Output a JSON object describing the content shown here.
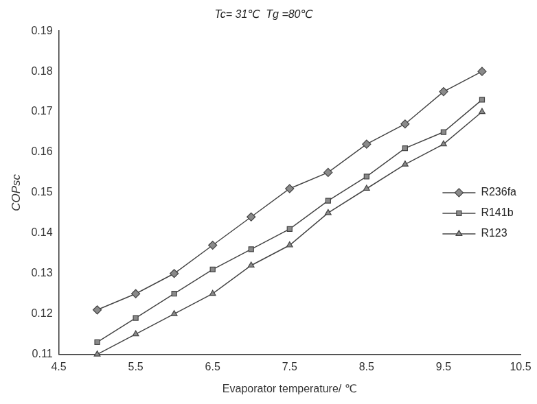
{
  "chart_data": {
    "type": "line",
    "title": "Tc= 31℃  Tg =80℃",
    "x_label": "Evaporator temperature/ ℃",
    "y_label": "COPsc",
    "x": [
      5,
      5.5,
      6,
      6.5,
      7,
      7.5,
      8,
      8.5,
      9,
      9.5,
      10
    ],
    "series": [
      {
        "name": "R236fa",
        "color": "#444444",
        "marker": "diamond",
        "line_style": "solid",
        "values": [
          0.121,
          0.125,
          0.13,
          0.137,
          0.144,
          0.151,
          0.155,
          0.162,
          0.167,
          0.175,
          0.18
        ]
      },
      {
        "name": "R141b",
        "color": "#444444",
        "marker": "square",
        "line_style": "solid",
        "values": [
          0.113,
          0.119,
          0.125,
          0.131,
          0.136,
          0.141,
          0.148,
          0.154,
          0.161,
          0.165,
          0.173
        ]
      },
      {
        "name": "R123",
        "color": "#444444",
        "marker": "triangle",
        "line_style": "solid",
        "values": [
          0.11,
          0.115,
          0.12,
          0.125,
          0.132,
          0.137,
          0.145,
          0.151,
          0.157,
          0.162,
          0.17
        ]
      }
    ],
    "xlim": [
      4.5,
      10.5
    ],
    "xticks": [
      4.5,
      5.5,
      6.5,
      7.5,
      8.5,
      9.5,
      10.5
    ],
    "ylim": [
      0.11,
      0.19
    ],
    "yticks": [
      0.11,
      0.12,
      0.13,
      0.14,
      0.15,
      0.16,
      0.17,
      0.18,
      0.19
    ],
    "grid": false,
    "legend": "lower right"
  }
}
